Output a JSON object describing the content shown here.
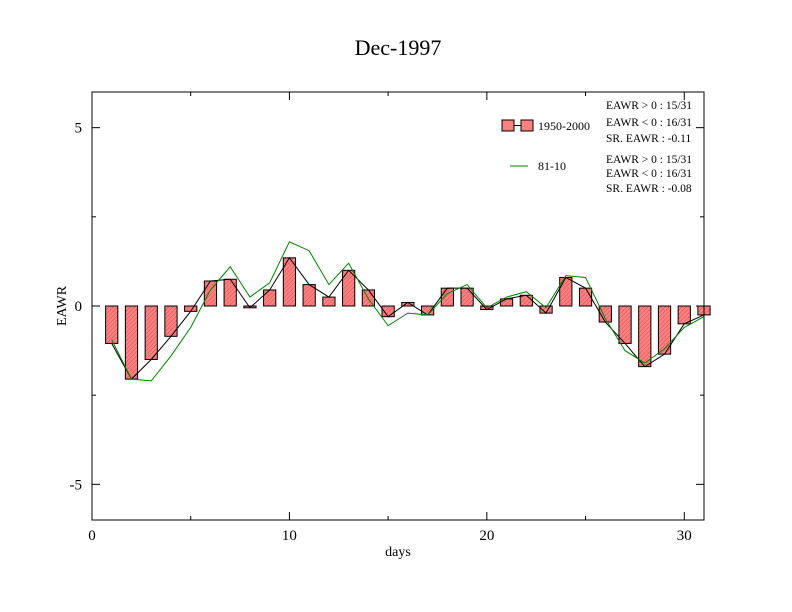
{
  "chart_data": {
    "type": "bar",
    "title": "Dec-1997",
    "xlabel": "days",
    "ylabel": "EAWR",
    "xlim": [
      0,
      31
    ],
    "ylim": [
      -6,
      6
    ],
    "xticks": [
      0,
      10,
      20,
      30
    ],
    "yticks": [
      -5,
      0,
      5
    ],
    "x": [
      1,
      2,
      3,
      4,
      5,
      6,
      7,
      8,
      9,
      10,
      11,
      12,
      13,
      14,
      15,
      16,
      17,
      18,
      19,
      20,
      21,
      22,
      23,
      24,
      25,
      26,
      27,
      28,
      29,
      30,
      31
    ],
    "series": [
      {
        "name": "1950-2000",
        "kind": "bar+line",
        "color": "#ff8080",
        "line_color": "#000000",
        "values": [
          -1.05,
          -2.05,
          -1.5,
          -0.85,
          -0.15,
          0.7,
          0.75,
          -0.05,
          0.45,
          1.35,
          0.6,
          0.25,
          1.0,
          0.45,
          -0.3,
          0.1,
          -0.25,
          0.5,
          0.5,
          -0.1,
          0.2,
          0.3,
          -0.2,
          0.8,
          0.5,
          -0.45,
          -1.05,
          -1.7,
          -1.35,
          -0.5,
          -0.25
        ]
      },
      {
        "name": "81-10",
        "kind": "line",
        "color": "#008000",
        "values": [
          -0.95,
          -2.05,
          -2.1,
          -1.4,
          -0.6,
          0.45,
          1.1,
          0.25,
          0.65,
          1.8,
          1.55,
          0.6,
          1.2,
          0.2,
          -0.55,
          -0.2,
          -0.25,
          0.35,
          0.6,
          -0.05,
          0.25,
          0.4,
          -0.05,
          0.85,
          0.8,
          -0.35,
          -1.25,
          -1.6,
          -1.2,
          -0.6,
          -0.3
        ]
      }
    ],
    "legend": {
      "placement": "top-right",
      "bar_stats": [
        "EAWR > 0 : 15/31",
        "EAWR < 0 : 16/31",
        "SR. EAWR : -0.11"
      ],
      "line_stats": [
        "EAWR > 0 : 15/31",
        "EAWR < 0 : 16/31",
        "SR. EAWR : -0.08"
      ]
    }
  }
}
